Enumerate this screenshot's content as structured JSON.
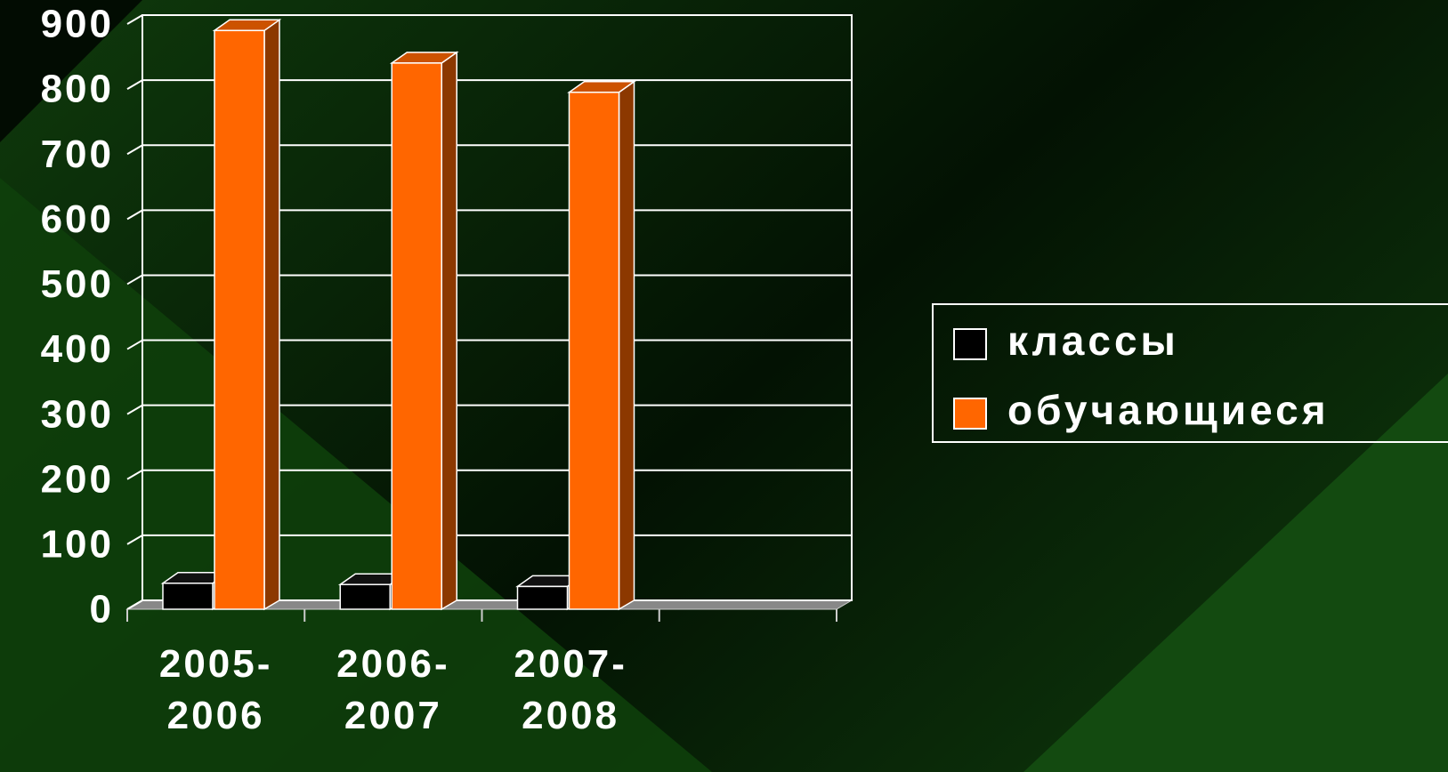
{
  "chart_data": {
    "type": "bar3d",
    "categories": [
      "2005-2006",
      "2006-2007",
      "2007-2008",
      null
    ],
    "series": [
      {
        "name": "классы",
        "color": "#000000",
        "values": [
          40,
          38,
          35,
          null
        ]
      },
      {
        "name": "обучающиеся",
        "color": "#ff6600",
        "values": [
          890,
          840,
          795,
          null
        ]
      }
    ],
    "ylim": [
      0,
      900
    ],
    "yticks": [
      0,
      100,
      200,
      300,
      400,
      500,
      600,
      700,
      800,
      900
    ],
    "grid": true,
    "legend": "right"
  }
}
